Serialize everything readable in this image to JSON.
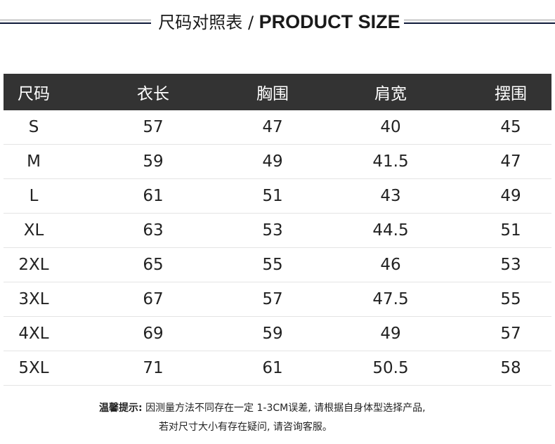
{
  "header": {
    "title_cn": "尺码对照表",
    "separator": "/",
    "title_en": "PRODUCT SIZE"
  },
  "table": {
    "columns": [
      "尺码",
      "衣长",
      "胸围",
      "肩宽",
      "摆围"
    ],
    "rows": [
      [
        "S",
        "57",
        "47",
        "40",
        "45"
      ],
      [
        "M",
        "59",
        "49",
        "41.5",
        "47"
      ],
      [
        "L",
        "61",
        "51",
        "43",
        "49"
      ],
      [
        "XL",
        "63",
        "53",
        "44.5",
        "51"
      ],
      [
        "2XL",
        "65",
        "55",
        "46",
        "53"
      ],
      [
        "3XL",
        "67",
        "57",
        "47.5",
        "55"
      ],
      [
        "4XL",
        "69",
        "59",
        "49",
        "57"
      ],
      [
        "5XL",
        "71",
        "61",
        "50.5",
        "58"
      ]
    ]
  },
  "note": {
    "label": "温馨提示:",
    "line1": "因测量方法不同存在一定 1-3CM误差, 请根据自身体型选择产品,",
    "line2": "若对尺寸大小有存在疑问, 请咨询客服。"
  },
  "colors": {
    "header_bg": "#333333",
    "rule_navy": "#0f1a3a"
  }
}
